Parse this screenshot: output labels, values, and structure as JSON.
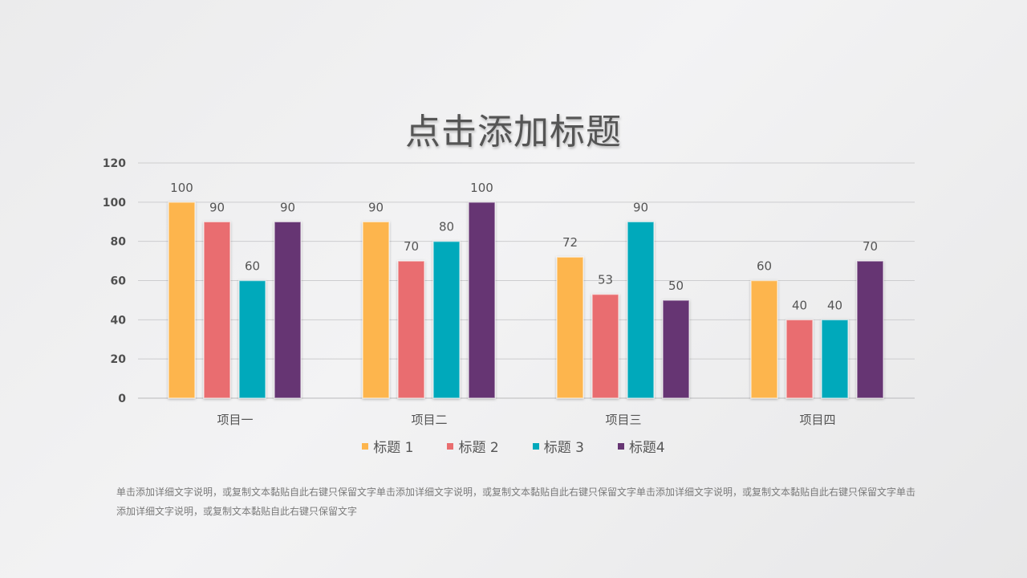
{
  "chart_data": {
    "type": "bar",
    "title": "点击添加标题",
    "categories": [
      "项目一",
      "项目二",
      "项目三",
      "项目四"
    ],
    "series": [
      {
        "name": "标题 1",
        "color": "#fdb54d",
        "values": [
          100,
          90,
          72,
          60
        ]
      },
      {
        "name": "标题 2",
        "color": "#e96d6f",
        "values": [
          90,
          70,
          53,
          40
        ]
      },
      {
        "name": "标题 3",
        "color": "#01a9bb",
        "values": [
          60,
          80,
          90,
          40
        ]
      },
      {
        "name": "标题4",
        "color": "#663573",
        "values": [
          90,
          100,
          50,
          70
        ]
      }
    ],
    "ylim": [
      0,
      120
    ],
    "yticks": [
      0,
      20,
      40,
      60,
      80,
      100,
      120
    ],
    "grid": true,
    "legend_position": "bottom"
  },
  "description": "单击添加详细文字说明，或复制文本黏贴自此右键只保留文字单击添加详细文字说明，或复制文本黏贴自此右键只保留文字单击添加详细文字说明，或复制文本黏贴自此右键只保留文字单击添加详细文字说明，或复制文本黏贴自此右键只保留文字"
}
